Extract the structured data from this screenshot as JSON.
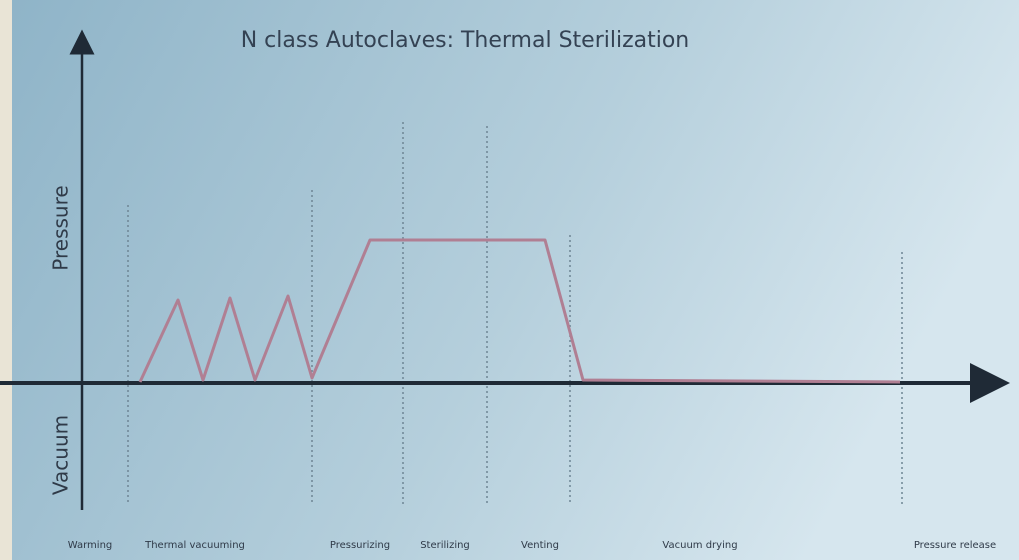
{
  "title": "N class Autoclaves: Thermal Sterilization",
  "axes": {
    "y_positive": "Pressure",
    "y_negative": "Vacuum"
  },
  "phases": [
    "Warming",
    "Thermal vacuuming",
    "Pressurizing",
    "Sterilizing",
    "Venting",
    "Vacuum drying",
    "Pressure release"
  ]
}
